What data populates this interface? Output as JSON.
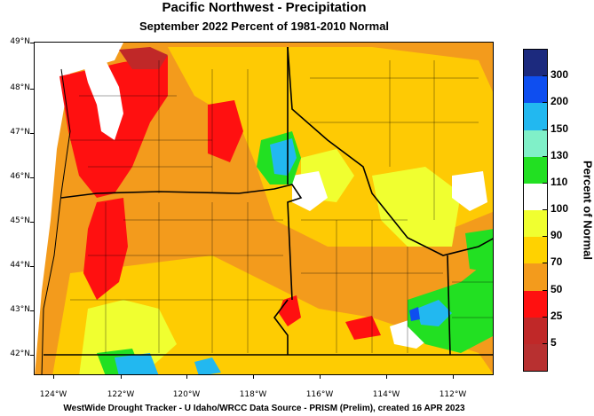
{
  "title": "Pacific Northwest - Precipitation",
  "subtitle": "September 2022  Percent of 1981-2010 Normal",
  "footer": "WestWide Drought Tracker - U Idaho/WRCC  Data Source - PRISM (Prelim), created 16 APR 2023",
  "legend": {
    "title": "Percent of Normal",
    "labels": [
      "300",
      "200",
      "150",
      "130",
      "110",
      "100",
      "90",
      "70",
      "50",
      "25",
      "5"
    ],
    "colors": [
      "#1c2a7e",
      "#0e4ef0",
      "#22b8f0",
      "#80f0c8",
      "#22e022",
      "#ffffff",
      "#f0ff30",
      "#ffd200",
      "#f39b1c",
      "#ff1010",
      "#c02828",
      "#b83030"
    ]
  },
  "axes": {
    "lat_labels": [
      "49°N",
      "48°N",
      "47°N",
      "46°N",
      "45°N",
      "44°N",
      "43°N",
      "42°N"
    ],
    "lon_labels": [
      "124°W",
      "122°W",
      "120°W",
      "118°W",
      "116°W",
      "114°W",
      "112°W"
    ]
  }
}
